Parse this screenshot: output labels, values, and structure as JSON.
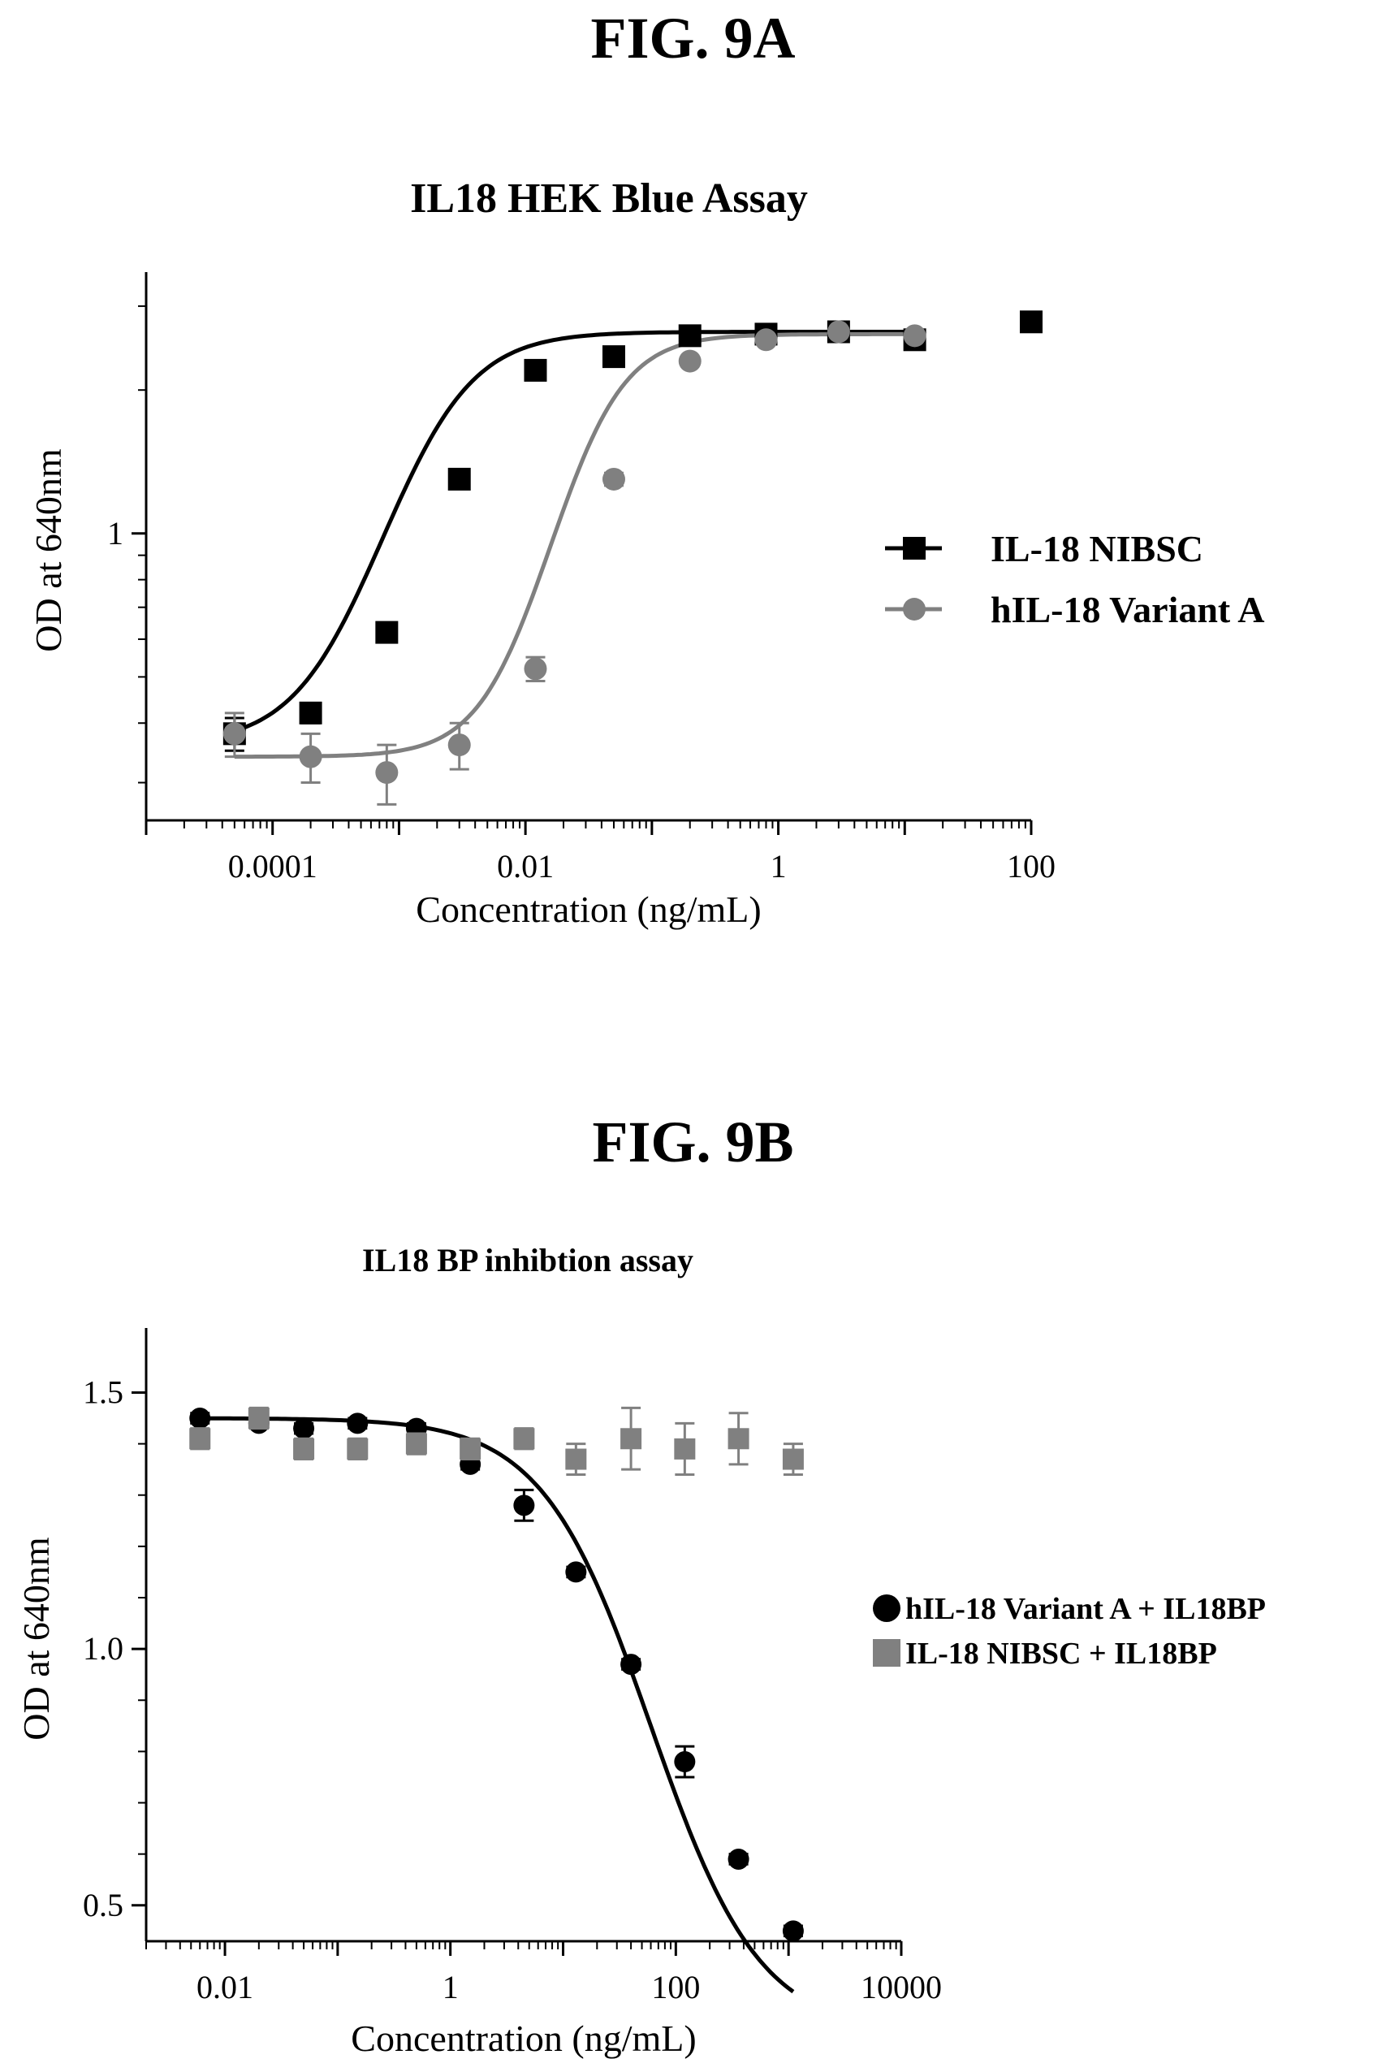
{
  "figA": {
    "label": "FIG. 9A"
  },
  "figB": {
    "label": "FIG. 9B"
  },
  "chart_data": [
    {
      "type": "scatter",
      "title": "IL18 HEK Blue Assay",
      "xlabel": "Concentration (ng/mL)",
      "ylabel": "OD at 640nm",
      "x_scale": "log",
      "y_scale": "log",
      "xlim": [
        1e-05,
        100
      ],
      "ylim": [
        0.25,
        3.4
      ],
      "x_ticks": [
        "0.0001",
        "0.01",
        "1",
        "100"
      ],
      "y_ticks": [
        "1"
      ],
      "legend_position": "right",
      "series": [
        {
          "name": "IL-18 NIBSC",
          "marker": "square",
          "color": "#000000",
          "x": [
            5e-05,
            0.0002,
            0.0008,
            0.003,
            0.012,
            0.05,
            0.2,
            0.8,
            3,
            12,
            100
          ],
          "y": [
            0.38,
            0.42,
            0.62,
            1.3,
            2.2,
            2.35,
            2.6,
            2.62,
            2.65,
            2.55,
            2.78
          ],
          "err": [
            0.03,
            0.02,
            0.02,
            0.03,
            0.04,
            0.04,
            0.04,
            0.04,
            0.04,
            0.04,
            0.05
          ]
        },
        {
          "name": "hIL-18 Variant A",
          "marker": "circle",
          "color": "#808080",
          "x": [
            5e-05,
            0.0002,
            0.0008,
            0.003,
            0.012,
            0.05,
            0.2,
            0.8,
            3,
            12
          ],
          "y": [
            0.38,
            0.34,
            0.315,
            0.36,
            0.52,
            1.3,
            2.3,
            2.55,
            2.65,
            2.6
          ],
          "err": [
            0.04,
            0.04,
            0.045,
            0.04,
            0.03,
            0.04,
            0.04,
            0.04,
            0.04,
            0.04
          ]
        }
      ]
    },
    {
      "type": "scatter",
      "title": "IL18 BP inhibtion assay",
      "xlabel": "Concentration (ng/mL)",
      "ylabel": "OD at 640nm",
      "x_scale": "log",
      "xlim": [
        0.002,
        10000
      ],
      "ylim": [
        0.43,
        1.61
      ],
      "x_ticks": [
        "0.01",
        "1",
        "100",
        "10000"
      ],
      "y_ticks": [
        "0.5",
        "1.0",
        "1.5"
      ],
      "legend_position": "right",
      "series": [
        {
          "name": "hIL-18 Variant A  + IL18BP",
          "marker": "circle",
          "color": "#000000",
          "x": [
            0.006,
            0.02,
            0.05,
            0.15,
            0.5,
            1.5,
            4.5,
            13,
            40,
            120,
            360,
            1100
          ],
          "y": [
            1.45,
            1.44,
            1.43,
            1.44,
            1.43,
            1.36,
            1.28,
            1.15,
            0.97,
            0.78,
            0.59,
            0.45
          ],
          "err": [
            0.01,
            0.01,
            0.01,
            0.01,
            0.01,
            0.01,
            0.03,
            0.01,
            0.01,
            0.03,
            0.01,
            0.01
          ]
        },
        {
          "name": "IL-18 NIBSC + IL18BP",
          "marker": "square",
          "color": "#808080",
          "x": [
            0.006,
            0.02,
            0.05,
            0.15,
            0.5,
            1.5,
            4.5,
            13,
            40,
            120,
            360,
            1100
          ],
          "y": [
            1.41,
            1.45,
            1.39,
            1.39,
            1.4,
            1.39,
            1.41,
            1.37,
            1.41,
            1.39,
            1.41,
            1.37
          ],
          "err": [
            0.02,
            0.02,
            0.02,
            0.02,
            0.02,
            0.02,
            0.02,
            0.03,
            0.06,
            0.05,
            0.05,
            0.03
          ]
        }
      ]
    }
  ]
}
